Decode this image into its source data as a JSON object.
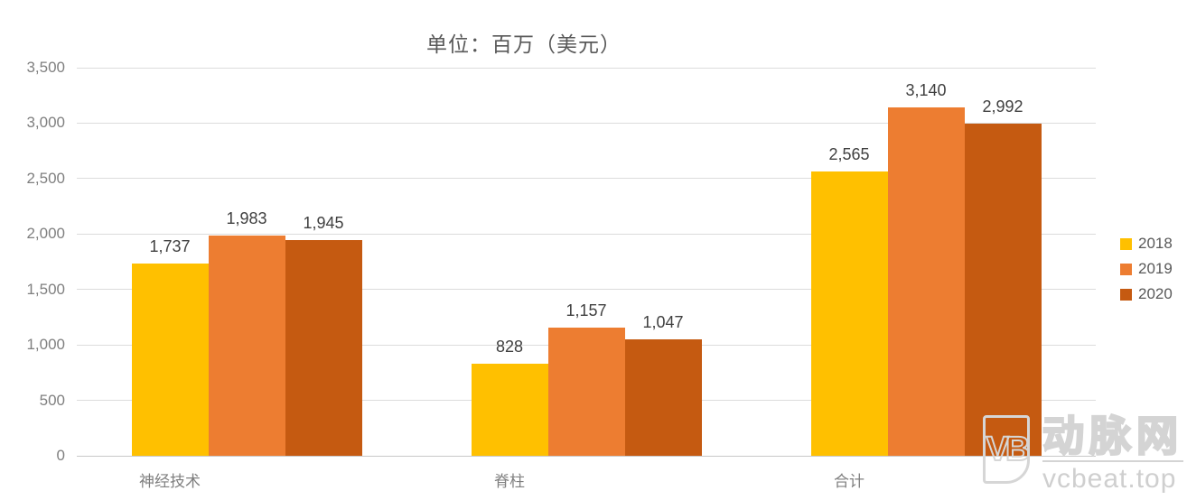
{
  "chart_data": {
    "type": "bar",
    "title": "单位：百万（美元）",
    "categories": [
      "神经技术",
      "脊柱",
      "合计"
    ],
    "series": [
      {
        "name": "2018",
        "color": "#FFC000",
        "values": [
          1737,
          828,
          2565
        ]
      },
      {
        "name": "2019",
        "color": "#ED7D31",
        "values": [
          1983,
          1157,
          3140
        ]
      },
      {
        "name": "2020",
        "color": "#C55A11",
        "values": [
          1945,
          1047,
          2992
        ]
      }
    ],
    "ylim": [
      0,
      3500
    ],
    "yticks": [
      0,
      500,
      1000,
      1500,
      2000,
      2500,
      3000,
      3500
    ],
    "grid": true,
    "legend_position": "right",
    "data_labels": true
  },
  "colors": {
    "grid": "#dcdcdc",
    "axis_text": "#7f7f7f",
    "data_label_text": "#404040",
    "title_text": "#595959",
    "watermark": "#d4d4d4"
  },
  "watermark": {
    "logo": "VB",
    "brand": "动脉网",
    "url": "vcbeat.top"
  }
}
